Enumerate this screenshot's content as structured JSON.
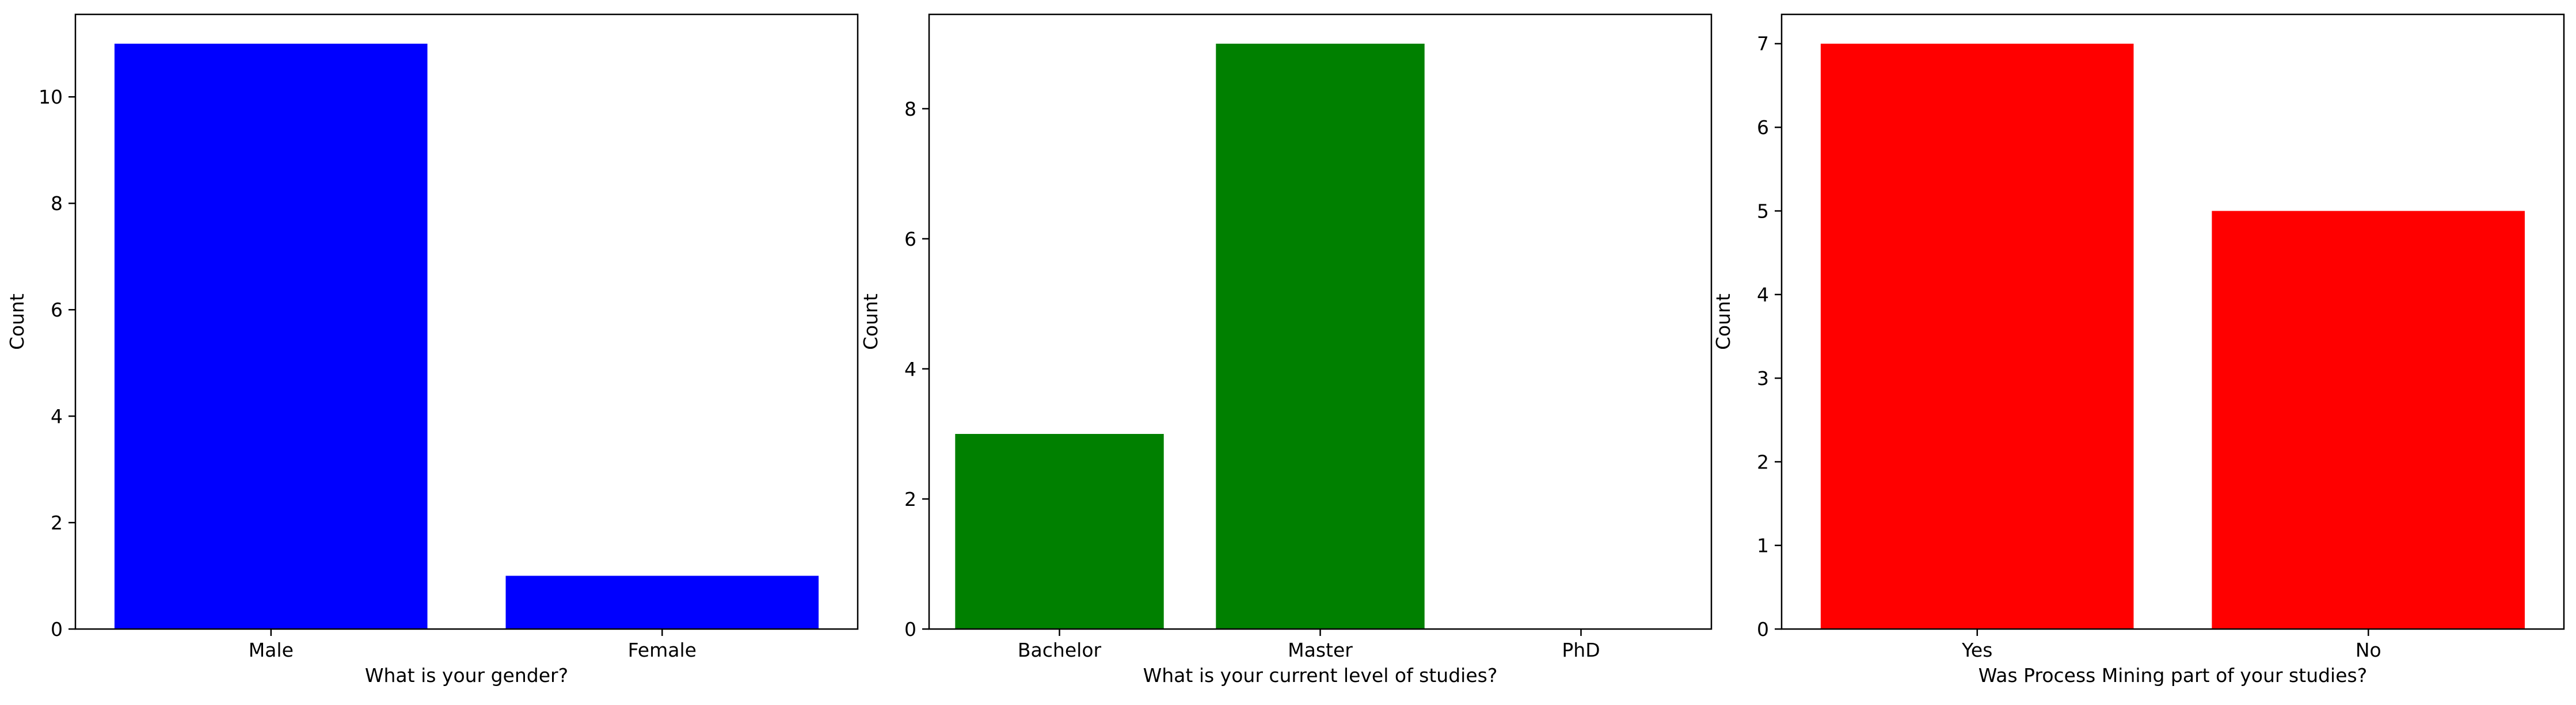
{
  "chart_data": [
    {
      "type": "bar",
      "categories": [
        "Male",
        "Female"
      ],
      "values": [
        11,
        1
      ],
      "color": "#0000ff",
      "xlabel": "What is your gender?",
      "ylabel": "Count",
      "ylim": [
        0,
        11.55
      ],
      "yticks": [
        0,
        2,
        4,
        6,
        8,
        10
      ],
      "grid": false
    },
    {
      "type": "bar",
      "categories": [
        "Bachelor",
        "Master",
        "PhD"
      ],
      "values": [
        3,
        9,
        0
      ],
      "color": "#008000",
      "xlabel": "What is your current level of studies?",
      "ylabel": "Count",
      "ylim": [
        0,
        9.45
      ],
      "yticks": [
        0,
        2,
        4,
        6,
        8
      ],
      "grid": false
    },
    {
      "type": "bar",
      "categories": [
        "Yes",
        "No"
      ],
      "values": [
        7,
        5
      ],
      "color": "#ff0000",
      "xlabel": "Was Process Mining part of your studies?",
      "ylabel": "Count",
      "ylim": [
        0,
        7.35
      ],
      "yticks": [
        0,
        1,
        2,
        3,
        4,
        5,
        6,
        7
      ],
      "grid": false
    }
  ]
}
